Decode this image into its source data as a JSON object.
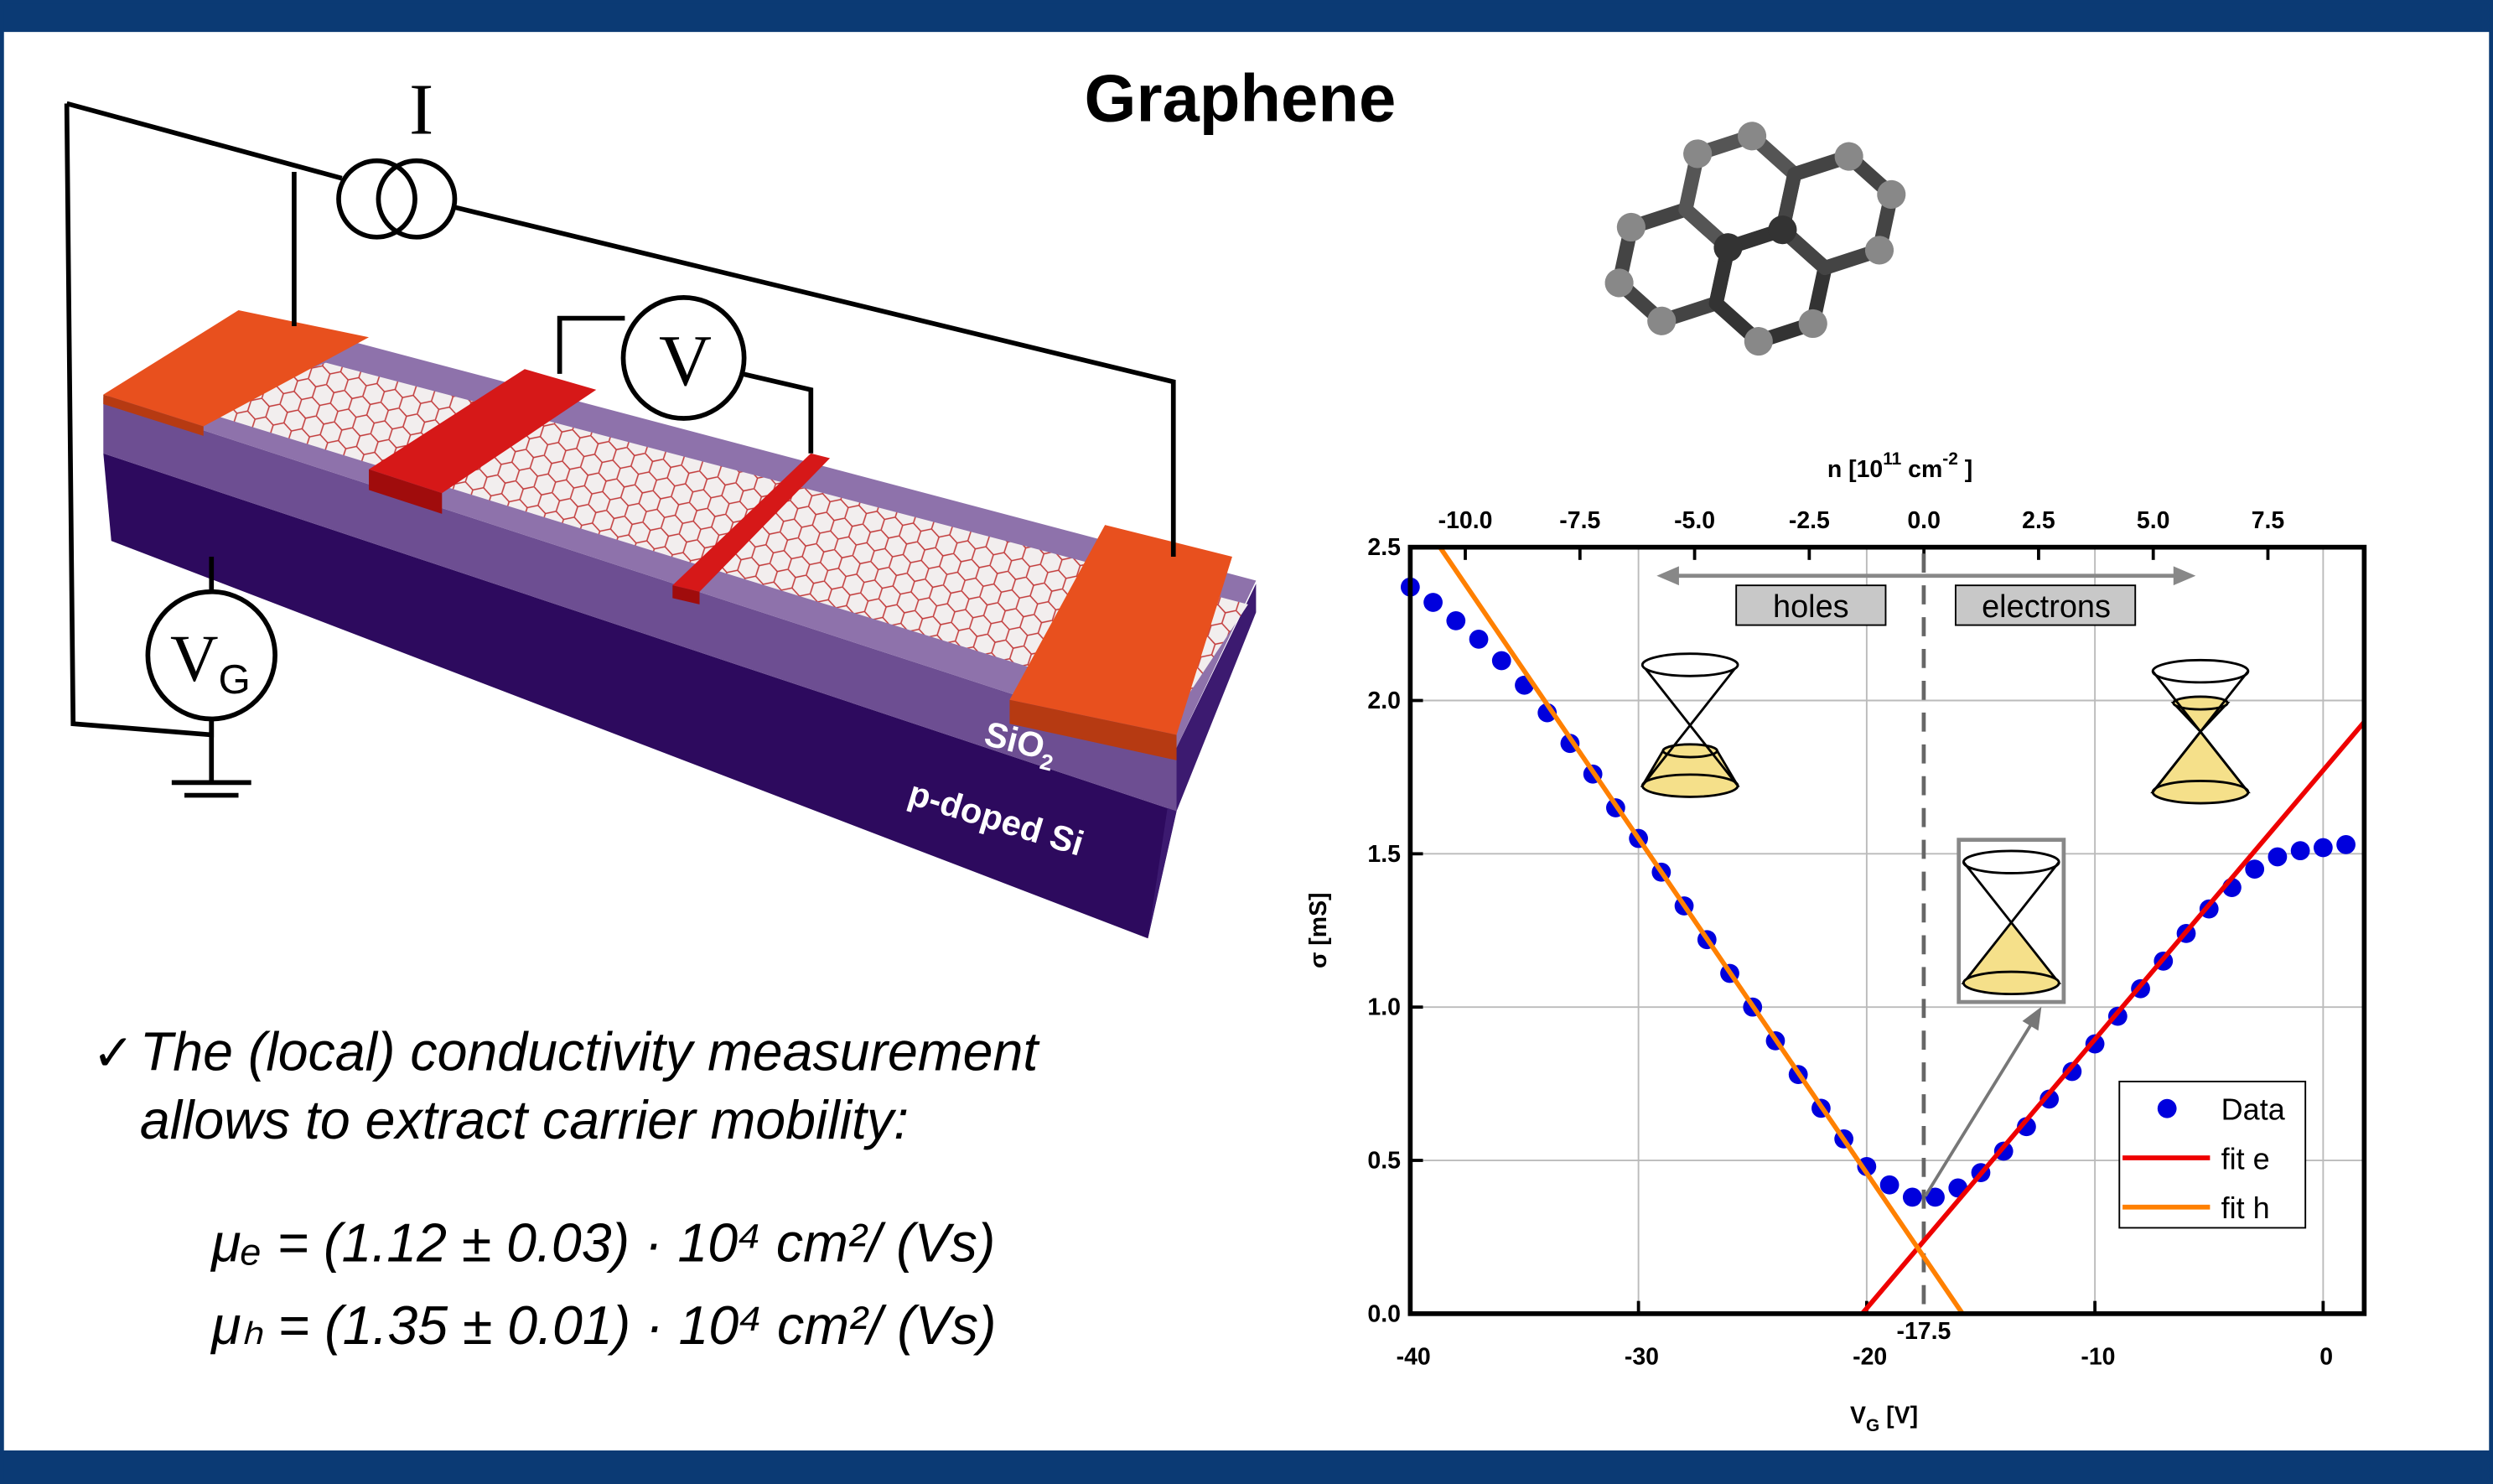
{
  "title": "Graphene",
  "circuit": {
    "current": "I",
    "voltage": "V",
    "gate": {
      "text": "V",
      "sub": "G"
    }
  },
  "layers": {
    "oxide": {
      "text": "SiO",
      "sub": "2"
    },
    "substrate": "p-doped Si"
  },
  "bullet": {
    "mark": "✓",
    "lines": [
      "The (local) conductivity measurement",
      "allows to extract carrier mobility:"
    ]
  },
  "formulas": [
    "μₑ = (1.12 ± 0.03) · 10⁴ cm²/ (Vs)",
    "μₕ = (1.35 ± 0.01) · 10⁴ cm²/ (Vs)"
  ],
  "chart_data": {
    "type": "scatter",
    "xlabel": {
      "text": "V",
      "sub": "G",
      "unit": " [V]"
    },
    "ylabel": "σ [mS]",
    "x2label": {
      "text": "n [10",
      "sup": "11",
      "mid": " cm",
      "sup2": "-2",
      "end": " ]"
    },
    "xlim": [
      -40,
      1.8
    ],
    "ylim": [
      0,
      2.5
    ],
    "xticks": [
      -40,
      -30,
      -20,
      -10,
      0
    ],
    "yticks": [
      {
        "value": 0,
        "label": "0.0"
      },
      0.5,
      {
        "value": 1,
        "label": "1.0"
      },
      1.5,
      {
        "value": 2,
        "label": "2.0"
      },
      2.5
    ],
    "x2lim": [
      -11.2,
      9.6
    ],
    "x2ticks": [
      {
        "value": -10,
        "label": "-10.0"
      },
      -7.5,
      {
        "value": -5,
        "label": "-5.0"
      },
      -2.5,
      {
        "value": 0,
        "label": "0.0"
      },
      2.5,
      {
        "value": 5,
        "label": "5.0"
      },
      7.5
    ],
    "grid": true,
    "dirac_point": -17.5,
    "regions": [
      "holes",
      "electrons"
    ],
    "legend": "lower right",
    "series": [
      {
        "name": "Data",
        "color": "#0000dd",
        "mode": "markers",
        "x": [
          -40,
          -39,
          -38,
          -37,
          -36,
          -35,
          -34,
          -33,
          -32,
          -31,
          -30,
          -29,
          -28,
          -27,
          -26,
          -25,
          -24,
          -23,
          -22,
          -21,
          -20,
          -19,
          -18,
          -17,
          -16,
          -15,
          -14,
          -13,
          -12,
          -11,
          -10,
          -9,
          -8,
          -7,
          -6,
          -5,
          -4,
          -3,
          -2,
          -1,
          0,
          1
        ],
        "values": [
          2.37,
          2.32,
          2.26,
          2.2,
          2.13,
          2.05,
          1.96,
          1.86,
          1.76,
          1.65,
          1.55,
          1.44,
          1.33,
          1.22,
          1.11,
          1.0,
          0.89,
          0.78,
          0.67,
          0.57,
          0.48,
          0.42,
          0.38,
          0.38,
          0.41,
          0.46,
          0.53,
          0.61,
          0.7,
          0.79,
          0.88,
          0.97,
          1.06,
          1.15,
          1.24,
          1.32,
          1.39,
          1.45,
          1.49,
          1.51,
          1.52,
          1.53
        ]
      },
      {
        "name": "fit e",
        "color": "#ee0000",
        "mode": "line",
        "x": [
          -20.2,
          1.8
        ],
        "values": [
          0,
          1.93
        ]
      },
      {
        "name": "fit h",
        "color": "#ff8000",
        "mode": "line",
        "x": [
          -38.7,
          -15.8
        ],
        "values": [
          2.5,
          0
        ]
      }
    ]
  }
}
